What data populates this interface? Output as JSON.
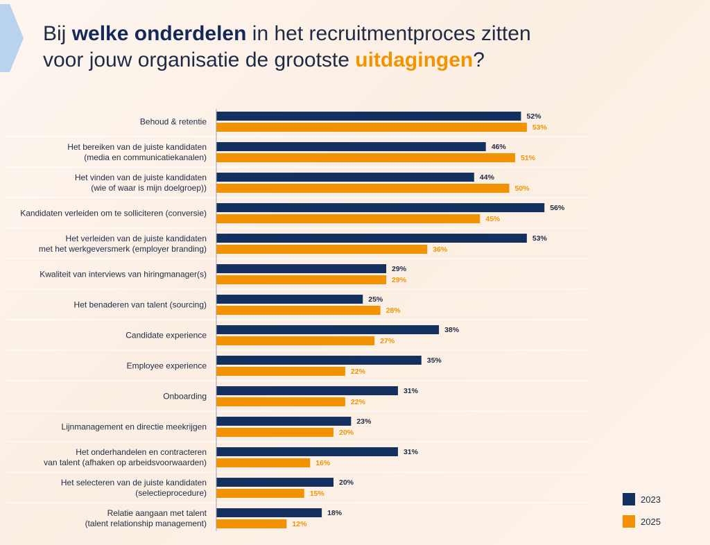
{
  "header": {
    "title_part1": "Bij ",
    "title_bold": "welke onderdelen",
    "title_part2": " in het recruitmentproces zitten",
    "title_part3": "voor jouw organisatie de grootste ",
    "title_accent": "uitdagingen",
    "title_end": "?"
  },
  "colors": {
    "navy": "#13305f",
    "orange": "#f39200"
  },
  "chart_data": {
    "type": "bar",
    "orientation": "horizontal",
    "categories": [
      [
        "Behoud & retentie"
      ],
      [
        "Het bereiken van de juiste kandidaten",
        "(media en communicatiekanalen)"
      ],
      [
        "Het vinden van de juiste kandidaten",
        "(wie of waar is mijn doelgroep))"
      ],
      [
        "Kandidaten verleiden om te solliciteren (conversie)"
      ],
      [
        "Het verleiden van de juiste kandidaten",
        "met het werkgeversmerk (employer branding)"
      ],
      [
        "Kwaliteit van interviews van hiringmanager(s)"
      ],
      [
        "Het benaderen van talent (sourcing)"
      ],
      [
        "Candidate experience"
      ],
      [
        "Employee experience"
      ],
      [
        "Onboarding"
      ],
      [
        "Lijnmanagement en directie meekrijgen"
      ],
      [
        "Het onderhandelen en contracteren",
        "van talent (afhaken op arbeidsvoorwaarden)"
      ],
      [
        "Het selecteren van de juiste kandidaten",
        "(selectieprocedure)"
      ],
      [
        "Relatie aangaan met talent",
        "(talent relationship management)"
      ]
    ],
    "series": [
      {
        "name": "2023",
        "color": "#13305f",
        "values": [
          52,
          46,
          44,
          56,
          53,
          29,
          25,
          38,
          35,
          31,
          23,
          31,
          20,
          18
        ],
        "labels": [
          "52%",
          "46%",
          "44%",
          "56%",
          "53%",
          "29%",
          "25%",
          "38%",
          "35%",
          "31%",
          "23%",
          "31%",
          "20%",
          "18%"
        ]
      },
      {
        "name": "2025",
        "color": "#f39200",
        "values": [
          53,
          51,
          50,
          45,
          36,
          29,
          28,
          27,
          22,
          22,
          20,
          16,
          15,
          12
        ],
        "labels": [
          "53%",
          "51%",
          "50%",
          "45%",
          "36%",
          "29%",
          "28%",
          "27%",
          "22%",
          "22%",
          "20%",
          "16%",
          "15%",
          "12%"
        ]
      }
    ],
    "unit": "%",
    "xlim": [
      0,
      100
    ],
    "legend_position": "bottom-right"
  },
  "legend": {
    "label_2023": "2023",
    "label_2025": "2025"
  }
}
